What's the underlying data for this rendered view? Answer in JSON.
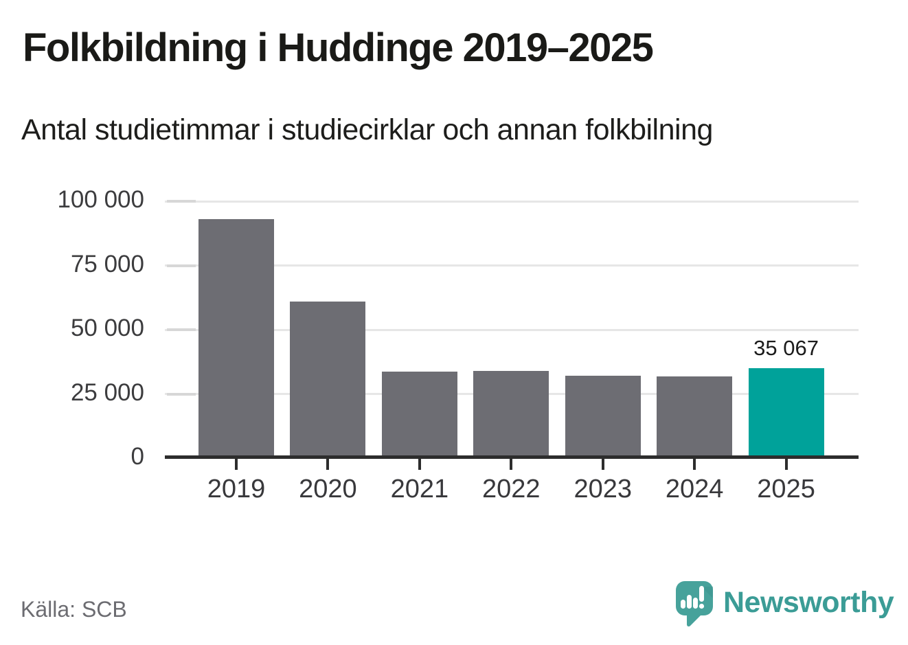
{
  "header": {
    "title": "Folkbildning i Huddinge 2019–2025",
    "subtitle": "Antal studietimmar i studiecirklar och annan folkbilning"
  },
  "footer": {
    "source": "Källa: SCB",
    "brand": "Newsworthy"
  },
  "chart_data": {
    "type": "bar",
    "title": "Folkbildning i Huddinge 2019–2025",
    "subtitle": "Antal studietimmar i studiecirklar och annan folkbilning",
    "categories": [
      "2019",
      "2020",
      "2021",
      "2022",
      "2023",
      "2024",
      "2025"
    ],
    "values": [
      93000,
      61000,
      33700,
      34000,
      32100,
      31800,
      35067
    ],
    "highlight_index": 6,
    "highlight_label": "35 067",
    "ylim": [
      0,
      100000
    ],
    "yticks": [
      0,
      25000,
      50000,
      75000,
      100000
    ],
    "ytick_labels": [
      "0",
      "25 000",
      "50 000",
      "75 000",
      "100 000"
    ],
    "grid": true,
    "legend": "none",
    "xlabel": "",
    "ylabel": "",
    "colors": {
      "bar": "#6d6d73",
      "highlight": "#00a29a",
      "gridline": "#e6e6e6",
      "axis": "#2d2d2d"
    }
  }
}
